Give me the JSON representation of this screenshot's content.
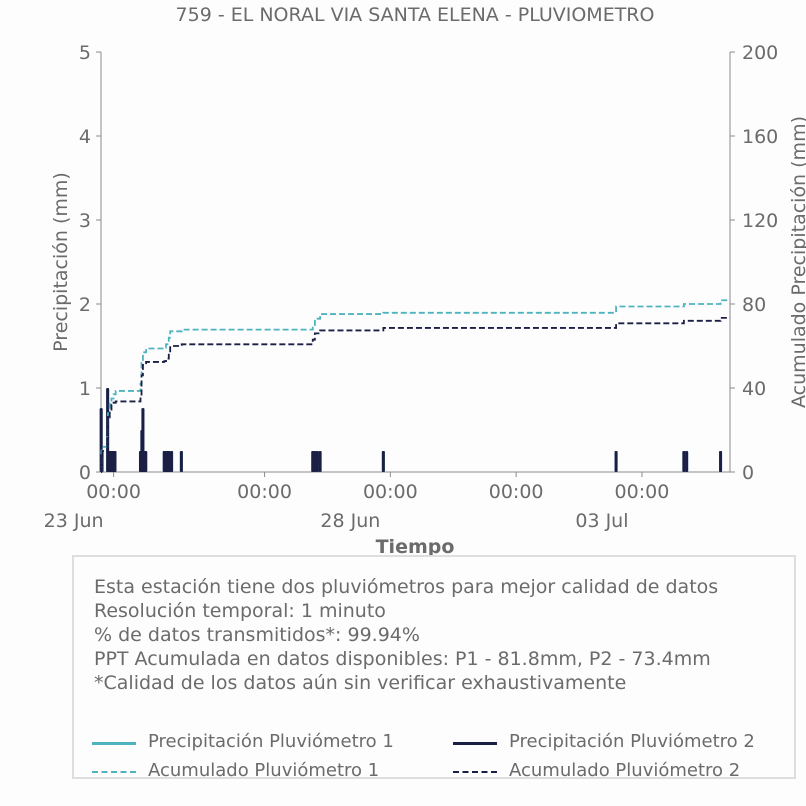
{
  "chart_data": {
    "type": "line",
    "title": "759 - EL NORAL VIA SANTA ELENA - PLUVIOMETRO",
    "xlabel": "Tiempo",
    "ylabel_left": "Precipitación (mm)",
    "ylabel_right": "Acumulado Precipitación (mm)",
    "ylim_left": [
      0,
      5
    ],
    "ylim_right": [
      0,
      200
    ],
    "yticks_left": [
      "0",
      "1",
      "2",
      "3",
      "4",
      "5"
    ],
    "yticks_right": [
      "0",
      "40",
      "80",
      "120",
      "160",
      "200"
    ],
    "x_range_days": [
      "2023-06-22 18:00",
      "2023-07-05 06:00"
    ],
    "xtick_labels": [
      {
        "day": "2023-06-23 00:00",
        "time": "00:00",
        "date": "23 Jun"
      },
      {
        "day": "2023-06-26 00:00",
        "time": "00:00",
        "date": ""
      },
      {
        "day": "2023-06-28 12:00",
        "time": "00:00",
        "date": "28 Jun"
      },
      {
        "day": "2023-07-01 00:00",
        "time": "00:00",
        "date": ""
      },
      {
        "day": "2023-07-03 12:00",
        "time": "00:00",
        "date": "03 Jul"
      }
    ],
    "grid": false,
    "series": [
      {
        "name": "Precipitación Pluviómetro 1",
        "style": "solid",
        "axis": "left",
        "color": "#4fb3bf",
        "events": [
          [
            "2023-06-22 18:05",
            0.76
          ],
          [
            "2023-06-22 18:30",
            0.25
          ],
          [
            "2023-06-22 21:10",
            1.0
          ],
          [
            "2023-06-22 21:40",
            0.25
          ],
          [
            "2023-06-22 22:20",
            0.25
          ],
          [
            "2023-06-22 23:10",
            0.25
          ],
          [
            "2023-06-23 00:00",
            0.25
          ],
          [
            "2023-06-23 00:40",
            0.25
          ],
          [
            "2023-06-23 12:50",
            0.25
          ],
          [
            "2023-06-23 13:30",
            0.5
          ],
          [
            "2023-06-23 14:00",
            0.76
          ],
          [
            "2023-06-23 14:40",
            0.25
          ],
          [
            "2023-06-23 15:20",
            0.25
          ],
          [
            "2023-06-24 00:10",
            0.25
          ],
          [
            "2023-06-24 00:50",
            0.25
          ],
          [
            "2023-06-24 01:40",
            0.25
          ],
          [
            "2023-06-24 02:30",
            0.25
          ],
          [
            "2023-06-24 03:40",
            0.25
          ],
          [
            "2023-06-24 08:20",
            0.25
          ],
          [
            "2023-06-26 23:00",
            0.25
          ],
          [
            "2023-06-27 00:00",
            0.25
          ],
          [
            "2023-06-27 01:10",
            0.25
          ],
          [
            "2023-06-27 02:30",
            0.25
          ],
          [
            "2023-06-28 08:40",
            0.25
          ],
          [
            "2023-07-02 23:40",
            0.25
          ],
          [
            "2023-07-04 08:00",
            0.25
          ],
          [
            "2023-07-04 09:20",
            0.25
          ],
          [
            "2023-07-05 01:30",
            0.25
          ]
        ]
      },
      {
        "name": "Precipitación Pluviómetro 2",
        "style": "solid",
        "axis": "left",
        "color": "#1c1f45",
        "events": [
          [
            "2023-06-22 18:05",
            0.76
          ],
          [
            "2023-06-22 18:30",
            0.25
          ],
          [
            "2023-06-22 21:10",
            1.0
          ],
          [
            "2023-06-22 21:40",
            0.25
          ],
          [
            "2023-06-22 22:20",
            0.25
          ],
          [
            "2023-06-22 23:10",
            0.25
          ],
          [
            "2023-06-23 00:00",
            0.25
          ],
          [
            "2023-06-23 00:40",
            0.25
          ],
          [
            "2023-06-23 12:50",
            0.25
          ],
          [
            "2023-06-23 13:30",
            0.5
          ],
          [
            "2023-06-23 14:00",
            0.76
          ],
          [
            "2023-06-23 14:40",
            0.25
          ],
          [
            "2023-06-23 15:20",
            0.25
          ],
          [
            "2023-06-24 00:10",
            0.25
          ],
          [
            "2023-06-24 00:50",
            0.25
          ],
          [
            "2023-06-24 01:40",
            0.25
          ],
          [
            "2023-06-24 02:30",
            0.25
          ],
          [
            "2023-06-24 03:40",
            0.25
          ],
          [
            "2023-06-24 08:20",
            0.25
          ],
          [
            "2023-06-26 23:00",
            0.25
          ],
          [
            "2023-06-27 00:00",
            0.25
          ],
          [
            "2023-06-27 01:10",
            0.25
          ],
          [
            "2023-06-27 02:30",
            0.25
          ],
          [
            "2023-06-28 08:40",
            0.25
          ],
          [
            "2023-07-02 23:40",
            0.25
          ],
          [
            "2023-07-04 08:00",
            0.25
          ],
          [
            "2023-07-04 09:20",
            0.25
          ],
          [
            "2023-07-05 01:30",
            0.25
          ]
        ]
      },
      {
        "name": "Acumulado Pluviómetro 1",
        "style": "dashed",
        "axis": "right",
        "color": "#4fb3bf",
        "steps": [
          [
            "2023-06-22 18:00",
            0
          ],
          [
            "2023-06-22 18:10",
            10
          ],
          [
            "2023-06-22 18:40",
            12
          ],
          [
            "2023-06-22 21:00",
            18
          ],
          [
            "2023-06-22 21:20",
            28
          ],
          [
            "2023-06-22 22:10",
            33
          ],
          [
            "2023-06-22 23:00",
            35
          ],
          [
            "2023-06-23 00:00",
            37
          ],
          [
            "2023-06-23 01:00",
            38.6
          ],
          [
            "2023-06-23 12:50",
            42
          ],
          [
            "2023-06-23 13:20",
            52
          ],
          [
            "2023-06-23 14:00",
            57
          ],
          [
            "2023-06-23 15:30",
            58.8
          ],
          [
            "2023-06-24 00:10",
            59.2
          ],
          [
            "2023-06-24 01:00",
            60.8
          ],
          [
            "2023-06-24 02:20",
            64
          ],
          [
            "2023-06-24 03:00",
            67
          ],
          [
            "2023-06-24 08:30",
            67.8
          ],
          [
            "2023-06-26 23:00",
            70
          ],
          [
            "2023-06-27 00:00",
            73
          ],
          [
            "2023-06-27 02:30",
            75.2
          ],
          [
            "2023-06-28 08:40",
            75.8
          ],
          [
            "2023-07-02 23:40",
            78.8
          ],
          [
            "2023-07-04 08:00",
            80
          ],
          [
            "2023-07-05 01:30",
            81.8
          ],
          [
            "2023-07-05 06:00",
            81.8
          ]
        ]
      },
      {
        "name": "Acumulado Pluviómetro 2",
        "style": "dashed",
        "axis": "right",
        "color": "#1c1f45",
        "steps": [
          [
            "2023-06-22 18:00",
            0
          ],
          [
            "2023-06-22 18:10",
            8
          ],
          [
            "2023-06-22 18:40",
            10
          ],
          [
            "2023-06-22 21:00",
            16
          ],
          [
            "2023-06-22 21:20",
            26
          ],
          [
            "2023-06-22 22:10",
            29
          ],
          [
            "2023-06-22 23:00",
            32
          ],
          [
            "2023-06-23 00:00",
            33
          ],
          [
            "2023-06-23 01:00",
            33.6
          ],
          [
            "2023-06-23 12:50",
            36
          ],
          [
            "2023-06-23 13:20",
            46
          ],
          [
            "2023-06-23 14:00",
            51
          ],
          [
            "2023-06-23 15:30",
            52.4
          ],
          [
            "2023-06-24 00:10",
            52.8
          ],
          [
            "2023-06-24 01:00",
            54
          ],
          [
            "2023-06-24 02:20",
            57
          ],
          [
            "2023-06-24 03:00",
            60
          ],
          [
            "2023-06-24 08:30",
            60.8
          ],
          [
            "2023-06-26 23:00",
            63
          ],
          [
            "2023-06-27 00:00",
            66
          ],
          [
            "2023-06-27 02:30",
            67.4
          ],
          [
            "2023-06-28 08:40",
            68.6
          ],
          [
            "2023-07-02 23:40",
            70.8
          ],
          [
            "2023-07-04 08:00",
            72
          ],
          [
            "2023-07-05 01:30",
            73.4
          ],
          [
            "2023-07-05 06:00",
            73.4
          ]
        ]
      }
    ]
  },
  "info": {
    "lines": [
      "Esta estación tiene dos pluviómetros para mejor calidad de datos",
      "Resolución temporal: 1 minuto",
      "% de datos transmitidos*: 99.94%",
      "PPT Acumulada en datos disponibles: P1 - 81.8mm, P2 - 73.4mm",
      "*Calidad de los datos aún sin verificar exhaustivamente"
    ]
  },
  "legend": {
    "items": [
      {
        "label": "Precipitación Pluviómetro 1",
        "color": "#4fb3bf",
        "style": "solid"
      },
      {
        "label": "Precipitación Pluviómetro 2",
        "color": "#1c1f45",
        "style": "solid"
      },
      {
        "label": "Acumulado Pluviómetro 1",
        "color": "#4fb3bf",
        "style": "dashed"
      },
      {
        "label": "Acumulado Pluviómetro 2",
        "color": "#1c1f45",
        "style": "dashed"
      }
    ]
  }
}
